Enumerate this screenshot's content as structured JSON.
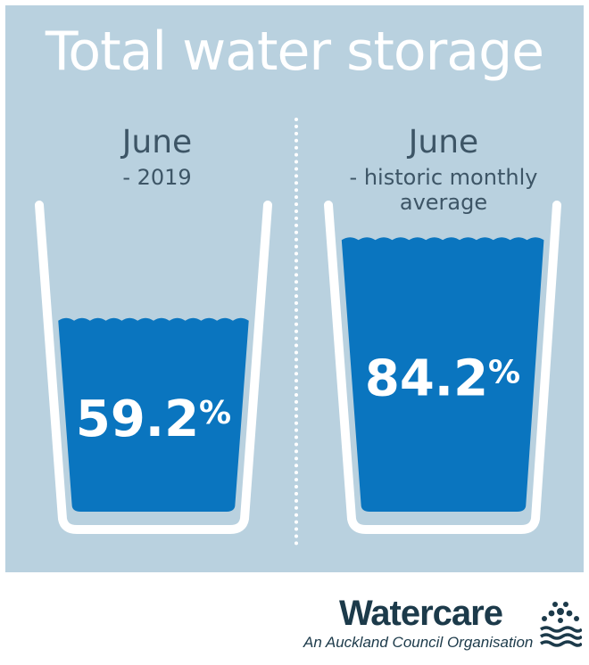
{
  "chart_data": {
    "type": "bar",
    "title": "Total water storage",
    "categories": [
      {
        "label": "June",
        "sublabel": "- 2019"
      },
      {
        "label": "June",
        "sublabel": "- historic monthly average"
      }
    ],
    "values": [
      59.2,
      84.2
    ],
    "value_labels": [
      "59.2%",
      "84.2%"
    ],
    "unit": "%",
    "ylim": [
      0,
      100
    ]
  },
  "colors": {
    "background": "#b9d1df",
    "water": "#0a75bf",
    "glass": "#ffffff"
  },
  "brand": {
    "name": "Watercare",
    "tagline": "An Auckland Council Organisation",
    "logo_icon": "watercare-logo-icon"
  }
}
